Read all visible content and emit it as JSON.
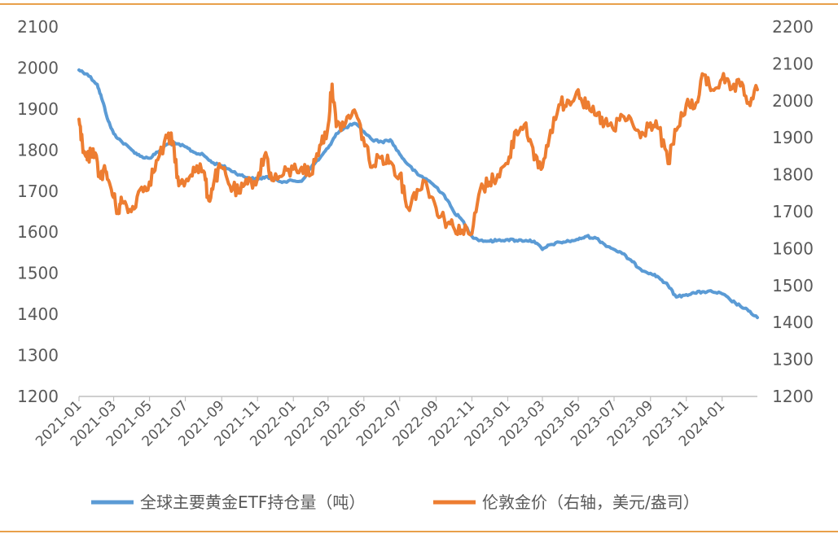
{
  "chart_data": {
    "type": "line",
    "frame_color": "#E8A04A",
    "x_ticks": [
      "2021-01",
      "2021-03",
      "2021-05",
      "2021-07",
      "2021-09",
      "2021-11",
      "2022-01",
      "2022-03",
      "2022-05",
      "2022-07",
      "2022-09",
      "2022-11",
      "2023-01",
      "2023-03",
      "2023-05",
      "2023-07",
      "2023-09",
      "2023-11",
      "2024-01"
    ],
    "x_range": [
      "2021-01",
      "2024-03"
    ],
    "y_left": {
      "ticks": [
        "1200",
        "1300",
        "1400",
        "1500",
        "1600",
        "1700",
        "1800",
        "1900",
        "2000",
        "2100"
      ],
      "range": [
        1200,
        2100
      ]
    },
    "y_right": {
      "ticks": [
        "1200",
        "1300",
        "1400",
        "1500",
        "1600",
        "1700",
        "1800",
        "1900",
        "2000",
        "2100",
        "2200"
      ],
      "range": [
        1200,
        2200
      ]
    },
    "grid": false,
    "legend_position": "bottom",
    "series": [
      {
        "name": "全球主要黄金ETF持仓量（吨）",
        "axis": "left",
        "color": "#5B9BD5",
        "points": [
          [
            "2021-01-01",
            1995
          ],
          [
            "2021-01-15",
            1985
          ],
          [
            "2021-02-01",
            1960
          ],
          [
            "2021-02-10",
            1920
          ],
          [
            "2021-02-20",
            1870
          ],
          [
            "2021-03-01",
            1840
          ],
          [
            "2021-03-15",
            1820
          ],
          [
            "2021-04-01",
            1800
          ],
          [
            "2021-04-15",
            1785
          ],
          [
            "2021-05-01",
            1780
          ],
          [
            "2021-05-15",
            1795
          ],
          [
            "2021-06-01",
            1815
          ],
          [
            "2021-06-15",
            1815
          ],
          [
            "2021-07-01",
            1808
          ],
          [
            "2021-07-15",
            1795
          ],
          [
            "2021-08-01",
            1788
          ],
          [
            "2021-08-15",
            1770
          ],
          [
            "2021-09-01",
            1762
          ],
          [
            "2021-09-15",
            1752
          ],
          [
            "2021-10-01",
            1740
          ],
          [
            "2021-10-15",
            1733
          ],
          [
            "2021-11-01",
            1728
          ],
          [
            "2021-11-15",
            1735
          ],
          [
            "2021-12-01",
            1728
          ],
          [
            "2021-12-15",
            1723
          ],
          [
            "2022-01-01",
            1725
          ],
          [
            "2022-01-15",
            1724
          ],
          [
            "2022-02-01",
            1760
          ],
          [
            "2022-02-15",
            1780
          ],
          [
            "2022-03-01",
            1805
          ],
          [
            "2022-03-15",
            1840
          ],
          [
            "2022-04-01",
            1855
          ],
          [
            "2022-04-15",
            1865
          ],
          [
            "2022-05-01",
            1845
          ],
          [
            "2022-05-15",
            1825
          ],
          [
            "2022-06-01",
            1820
          ],
          [
            "2022-06-15",
            1825
          ],
          [
            "2022-07-01",
            1790
          ],
          [
            "2022-07-15",
            1765
          ],
          [
            "2022-08-01",
            1740
          ],
          [
            "2022-08-15",
            1730
          ],
          [
            "2022-09-01",
            1710
          ],
          [
            "2022-09-15",
            1690
          ],
          [
            "2022-10-01",
            1650
          ],
          [
            "2022-10-15",
            1630
          ],
          [
            "2022-11-01",
            1590
          ],
          [
            "2022-11-15",
            1580
          ],
          [
            "2022-12-01",
            1578
          ],
          [
            "2022-12-15",
            1580
          ],
          [
            "2023-01-01",
            1582
          ],
          [
            "2023-01-15",
            1580
          ],
          [
            "2023-02-01",
            1580
          ],
          [
            "2023-02-15",
            1578
          ],
          [
            "2023-03-01",
            1558
          ],
          [
            "2023-03-15",
            1570
          ],
          [
            "2023-04-01",
            1575
          ],
          [
            "2023-04-15",
            1578
          ],
          [
            "2023-05-01",
            1582
          ],
          [
            "2023-05-15",
            1590
          ],
          [
            "2023-06-01",
            1585
          ],
          [
            "2023-06-15",
            1570
          ],
          [
            "2023-07-01",
            1558
          ],
          [
            "2023-07-15",
            1548
          ],
          [
            "2023-08-01",
            1528
          ],
          [
            "2023-08-15",
            1510
          ],
          [
            "2023-09-01",
            1500
          ],
          [
            "2023-09-15",
            1490
          ],
          [
            "2023-10-01",
            1470
          ],
          [
            "2023-10-15",
            1442
          ],
          [
            "2023-11-01",
            1448
          ],
          [
            "2023-11-15",
            1452
          ],
          [
            "2023-12-01",
            1455
          ],
          [
            "2023-12-15",
            1455
          ],
          [
            "2024-01-01",
            1450
          ],
          [
            "2024-01-15",
            1435
          ],
          [
            "2024-02-01",
            1420
          ],
          [
            "2024-02-15",
            1408
          ],
          [
            "2024-03-01",
            1392
          ]
        ]
      },
      {
        "name": "伦敦金价（右轴，美元/盎司）",
        "axis": "right",
        "color": "#ED7D31",
        "points": [
          [
            "2021-01-01",
            1950
          ],
          [
            "2021-01-08",
            1860
          ],
          [
            "2021-01-15",
            1840
          ],
          [
            "2021-01-25",
            1870
          ],
          [
            "2021-02-05",
            1800
          ],
          [
            "2021-02-15",
            1810
          ],
          [
            "2021-02-25",
            1760
          ],
          [
            "2021-03-08",
            1700
          ],
          [
            "2021-03-15",
            1730
          ],
          [
            "2021-03-31",
            1700
          ],
          [
            "2021-04-15",
            1760
          ],
          [
            "2021-05-01",
            1780
          ],
          [
            "2021-05-15",
            1840
          ],
          [
            "2021-06-01",
            1900
          ],
          [
            "2021-06-10",
            1890
          ],
          [
            "2021-06-20",
            1770
          ],
          [
            "2021-07-01",
            1780
          ],
          [
            "2021-07-15",
            1820
          ],
          [
            "2021-08-01",
            1810
          ],
          [
            "2021-08-10",
            1730
          ],
          [
            "2021-08-20",
            1790
          ],
          [
            "2021-09-01",
            1820
          ],
          [
            "2021-09-15",
            1770
          ],
          [
            "2021-09-30",
            1750
          ],
          [
            "2021-10-15",
            1775
          ],
          [
            "2021-11-01",
            1790
          ],
          [
            "2021-11-15",
            1860
          ],
          [
            "2021-11-25",
            1785
          ],
          [
            "2021-12-15",
            1800
          ],
          [
            "2022-01-01",
            1815
          ],
          [
            "2022-01-15",
            1820
          ],
          [
            "2022-01-31",
            1800
          ],
          [
            "2022-02-15",
            1880
          ],
          [
            "2022-02-28",
            1920
          ],
          [
            "2022-03-08",
            2045
          ],
          [
            "2022-03-15",
            1930
          ],
          [
            "2022-03-31",
            1940
          ],
          [
            "2022-04-15",
            1975
          ],
          [
            "2022-04-30",
            1900
          ],
          [
            "2022-05-15",
            1820
          ],
          [
            "2022-06-01",
            1850
          ],
          [
            "2022-06-15",
            1835
          ],
          [
            "2022-07-01",
            1800
          ],
          [
            "2022-07-15",
            1710
          ],
          [
            "2022-07-31",
            1760
          ],
          [
            "2022-08-15",
            1780
          ],
          [
            "2022-09-01",
            1710
          ],
          [
            "2022-09-15",
            1680
          ],
          [
            "2022-09-30",
            1660
          ],
          [
            "2022-10-15",
            1650
          ],
          [
            "2022-11-01",
            1640
          ],
          [
            "2022-11-15",
            1760
          ],
          [
            "2022-12-01",
            1780
          ],
          [
            "2022-12-15",
            1800
          ],
          [
            "2023-01-01",
            1830
          ],
          [
            "2023-01-15",
            1920
          ],
          [
            "2023-02-01",
            1940
          ],
          [
            "2023-02-15",
            1840
          ],
          [
            "2023-03-01",
            1820
          ],
          [
            "2023-03-15",
            1920
          ],
          [
            "2023-04-01",
            1990
          ],
          [
            "2023-04-15",
            2000
          ],
          [
            "2023-05-01",
            2030
          ],
          [
            "2023-05-15",
            1980
          ],
          [
            "2023-06-01",
            1960
          ],
          [
            "2023-06-15",
            1940
          ],
          [
            "2023-07-01",
            1920
          ],
          [
            "2023-07-15",
            1960
          ],
          [
            "2023-08-01",
            1940
          ],
          [
            "2023-08-15",
            1900
          ],
          [
            "2023-09-01",
            1940
          ],
          [
            "2023-09-15",
            1925
          ],
          [
            "2023-10-01",
            1830
          ],
          [
            "2023-10-15",
            1920
          ],
          [
            "2023-11-01",
            1990
          ],
          [
            "2023-11-15",
            1980
          ],
          [
            "2023-12-01",
            2070
          ],
          [
            "2023-12-15",
            2030
          ],
          [
            "2024-01-01",
            2060
          ],
          [
            "2024-01-15",
            2030
          ],
          [
            "2024-02-01",
            2040
          ],
          [
            "2024-02-15",
            1995
          ],
          [
            "2024-03-01",
            2030
          ]
        ]
      }
    ]
  }
}
